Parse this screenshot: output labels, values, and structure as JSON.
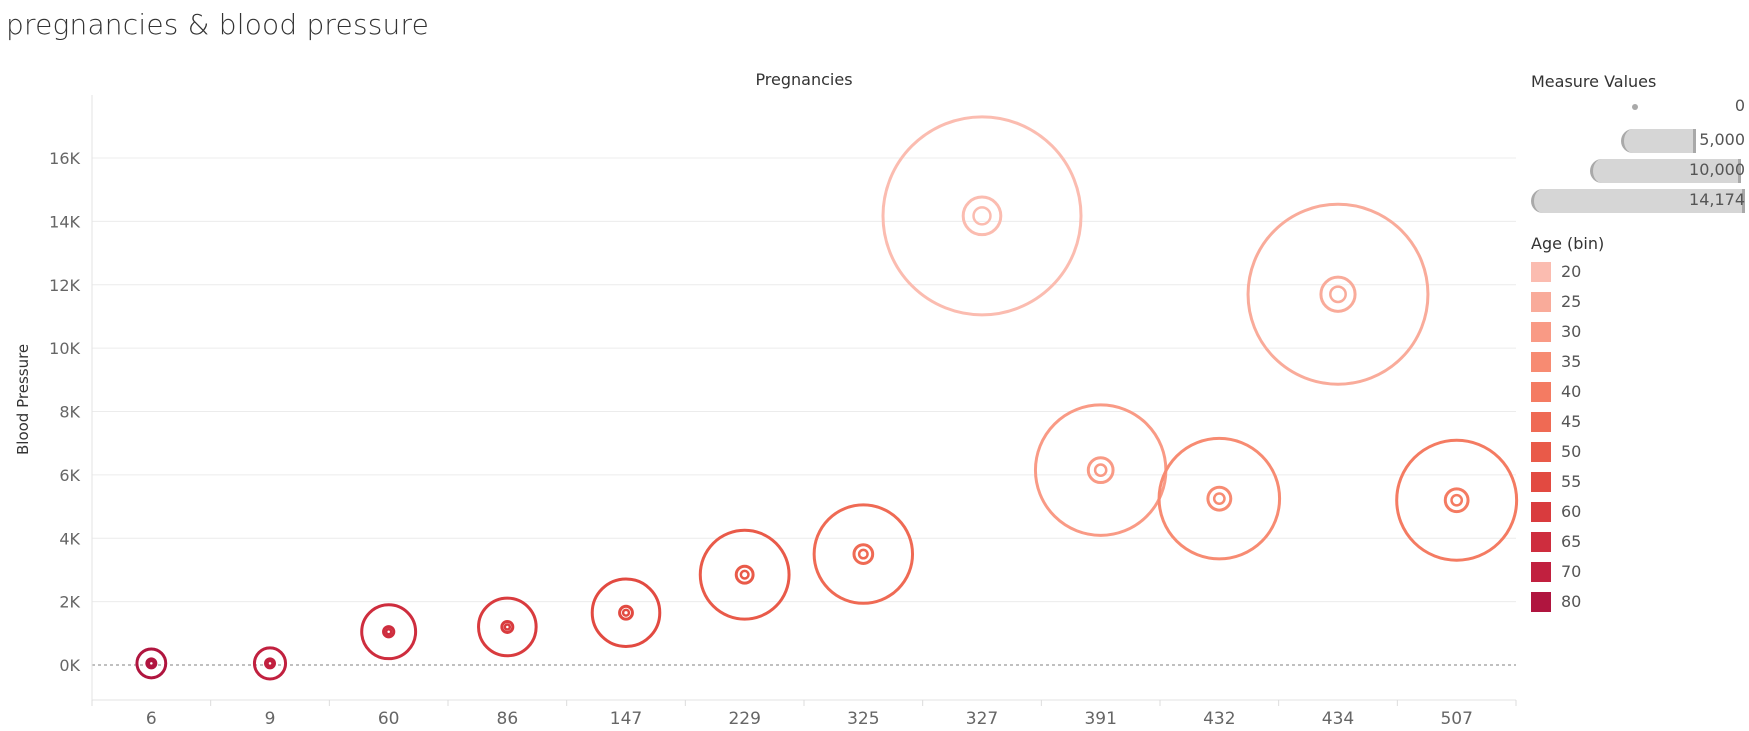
{
  "page_title": "pregnancies & blood pressure",
  "chart_data": {
    "type": "scatter",
    "title": "pregnancies & blood pressure",
    "column_header": "Pregnancies",
    "ylabel": "Blood Pressure",
    "categories": [
      "6",
      "9",
      "60",
      "86",
      "147",
      "229",
      "325",
      "327",
      "391",
      "432",
      "434",
      "507"
    ],
    "y_ticks": [
      "0K",
      "2K",
      "4K",
      "6K",
      "8K",
      "10K",
      "12K",
      "14K",
      "16K"
    ],
    "ylim": [
      -1000,
      17500
    ],
    "grid": true,
    "marks": "concentric circles (outer size = Measure Values, inner ring)",
    "points": [
      {
        "pregnancies": "6",
        "blood_pressure": 50,
        "size": 300,
        "age_bin": "80"
      },
      {
        "pregnancies": "9",
        "blood_pressure": 50,
        "size": 350,
        "age_bin": "70"
      },
      {
        "pregnancies": "60",
        "blood_pressure": 1050,
        "size": 1050,
        "age_bin": "65"
      },
      {
        "pregnancies": "86",
        "blood_pressure": 1200,
        "size": 1200,
        "age_bin": "60"
      },
      {
        "pregnancies": "147",
        "blood_pressure": 1650,
        "size": 1650,
        "age_bin": "55"
      },
      {
        "pregnancies": "229",
        "blood_pressure": 2850,
        "size": 2850,
        "age_bin": "50"
      },
      {
        "pregnancies": "325",
        "blood_pressure": 3500,
        "size": 3500,
        "age_bin": "45"
      },
      {
        "pregnancies": "327",
        "blood_pressure": 14174,
        "size": 14174,
        "age_bin": "20"
      },
      {
        "pregnancies": "391",
        "blood_pressure": 6150,
        "size": 6150,
        "age_bin": "30"
      },
      {
        "pregnancies": "432",
        "blood_pressure": 5250,
        "size": 5250,
        "age_bin": "35"
      },
      {
        "pregnancies": "434",
        "blood_pressure": 11700,
        "size": 11700,
        "age_bin": "25"
      },
      {
        "pregnancies": "507",
        "blood_pressure": 5200,
        "size": 5200,
        "age_bin": "40"
      }
    ],
    "size_legend": {
      "title": "Measure Values",
      "values": [
        0,
        5000,
        10000,
        14174
      ],
      "labels": [
        "0",
        "5,000",
        "10,000",
        "14,174"
      ]
    },
    "color_legend": {
      "title": "Age (bin)",
      "items": [
        {
          "label": "20",
          "color": "#fbbcb0"
        },
        {
          "label": "25",
          "color": "#f9ab9a"
        },
        {
          "label": "30",
          "color": "#f99a85"
        },
        {
          "label": "35",
          "color": "#f78b72"
        },
        {
          "label": "40",
          "color": "#f47b62"
        },
        {
          "label": "45",
          "color": "#ef6a54"
        },
        {
          "label": "50",
          "color": "#e95a49"
        },
        {
          "label": "55",
          "color": "#e24a41"
        },
        {
          "label": "60",
          "color": "#d93b3e"
        },
        {
          "label": "65",
          "color": "#ce2d3e"
        },
        {
          "label": "70",
          "color": "#c1203f"
        },
        {
          "label": "80",
          "color": "#b0153f"
        }
      ]
    }
  }
}
